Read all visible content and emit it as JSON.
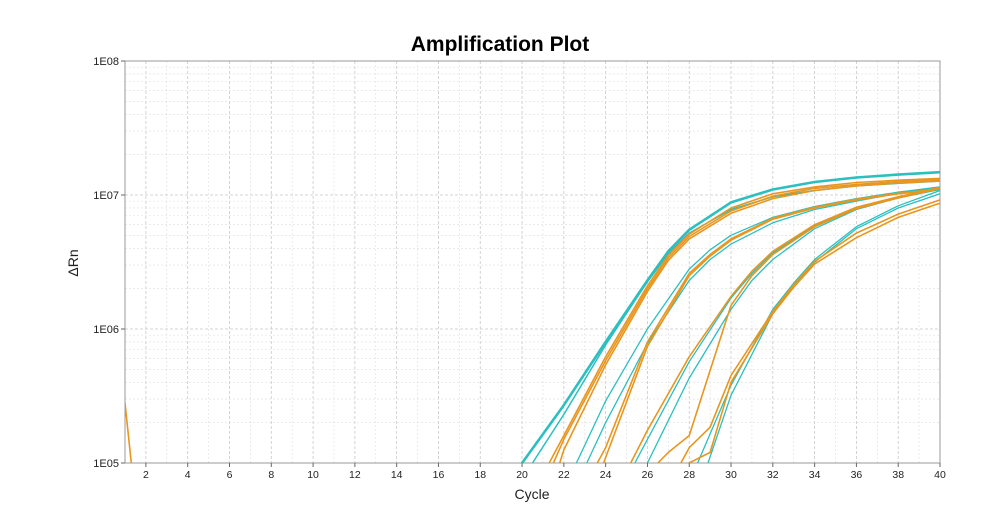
{
  "chart_data": {
    "type": "line",
    "title": "Amplification Plot",
    "xlabel": "Cycle",
    "ylabel": "ΔRn",
    "xlim": [
      1,
      40
    ],
    "ylim": [
      100000,
      100000000
    ],
    "yscale": "log",
    "grid": true,
    "legend": "none",
    "x_ticks": [
      2,
      4,
      6,
      8,
      10,
      12,
      14,
      16,
      18,
      20,
      22,
      24,
      26,
      28,
      30,
      32,
      34,
      36,
      38,
      40
    ],
    "x_tick_labels": [
      "2",
      "4",
      "6",
      "8",
      "10",
      "12",
      "14",
      "16",
      "18",
      "20",
      "22",
      "24",
      "26",
      "28",
      "30",
      "32",
      "34",
      "36",
      "38",
      "40"
    ],
    "y_ticks": [
      100000,
      1000000,
      10000000,
      100000000
    ],
    "y_tick_labels": [
      "1E05",
      "1E06",
      "1E07",
      "1E08"
    ],
    "colors": {
      "teal": "#2bbfc0",
      "orange": "#e8961e"
    },
    "series": [
      {
        "color": "#2bbfc0",
        "width": 2.6,
        "x": [
          20,
          22,
          24,
          26,
          27,
          28,
          30,
          32,
          34,
          36,
          38,
          40
        ],
        "y": [
          100000,
          270000,
          800000,
          2300000,
          3800000,
          5500000,
          8800000,
          11000000,
          12500000,
          13500000,
          14200000,
          14800000
        ]
      },
      {
        "color": "#2bbfc0",
        "width": 1.5,
        "x": [
          20.5,
          22,
          24,
          26,
          27,
          28,
          30,
          32,
          34,
          36,
          38,
          40
        ],
        "y": [
          100000,
          230000,
          760000,
          2250000,
          3650000,
          5200000,
          7800000,
          9700000,
          10800000,
          11700000,
          12200000,
          12700000
        ]
      },
      {
        "color": "#e8961e",
        "width": 1.6,
        "x": [
          21.3,
          22,
          24,
          26,
          27,
          28,
          30,
          32,
          34,
          36,
          38,
          40
        ],
        "y": [
          100000,
          160000,
          620000,
          2100000,
          3550000,
          5100000,
          8000000,
          10200000,
          11500000,
          12400000,
          12900000,
          13300000
        ]
      },
      {
        "color": "#e8961e",
        "width": 1.6,
        "x": [
          21.5,
          22,
          24,
          26,
          27,
          28,
          30,
          32,
          34,
          36,
          38,
          40
        ],
        "y": [
          100000,
          150000,
          580000,
          2000000,
          3400000,
          4900000,
          7600000,
          9800000,
          11200000,
          12000000,
          12600000,
          13000000
        ]
      },
      {
        "color": "#e8961e",
        "width": 1.6,
        "x": [
          21.8,
          22,
          24,
          26,
          27,
          28,
          30,
          32,
          34,
          36,
          38,
          40
        ],
        "y": [
          100000,
          125000,
          540000,
          1900000,
          3250000,
          4700000,
          7300000,
          9400000,
          10800000,
          11700000,
          12300000,
          12700000
        ]
      },
      {
        "color": "#2bbfc0",
        "width": 1.3,
        "x": [
          22.6,
          24,
          26,
          28,
          29,
          30,
          32,
          34,
          36,
          38,
          40
        ],
        "y": [
          100000,
          290000,
          1000000,
          2800000,
          3900000,
          5000000,
          6800000,
          8200000,
          9400000,
          10500000,
          11500000
        ]
      },
      {
        "color": "#2bbfc0",
        "width": 1.3,
        "x": [
          23.1,
          24,
          26,
          28,
          29,
          30,
          32,
          34,
          36,
          38,
          40
        ],
        "y": [
          100000,
          200000,
          780000,
          2300000,
          3300000,
          4300000,
          6200000,
          7800000,
          9000000,
          10300000,
          11500000
        ]
      },
      {
        "color": "#e8961e",
        "width": 1.6,
        "x": [
          23.6,
          24,
          26,
          28,
          29,
          30,
          32,
          34,
          36,
          38,
          40
        ],
        "y": [
          100000,
          130000,
          800000,
          2600000,
          3600000,
          4700000,
          6700000,
          8100000,
          9300000,
          10300000,
          11100000
        ]
      },
      {
        "color": "#e8961e",
        "width": 1.6,
        "x": [
          23.9,
          24,
          26,
          28,
          29,
          30,
          32,
          34,
          36,
          38,
          40
        ],
        "y": [
          100000,
          110000,
          740000,
          2500000,
          3500000,
          4600000,
          6600000,
          8000000,
          9200000,
          10200000,
          11000000
        ]
      },
      {
        "color": "#2bbfc0",
        "width": 1.3,
        "x": [
          25.4,
          26,
          28,
          30,
          31,
          32,
          34,
          36,
          38,
          40
        ],
        "y": [
          100000,
          150000,
          570000,
          1700000,
          2600000,
          3700000,
          5900000,
          8000000,
          9600000,
          11300000
        ]
      },
      {
        "color": "#2bbfc0",
        "width": 1.3,
        "x": [
          26.0,
          28,
          30,
          31,
          32,
          34,
          36,
          38,
          40
        ],
        "y": [
          100000,
          430000,
          1400000,
          2300000,
          3300000,
          5600000,
          7800000,
          9500000,
          11000000
        ]
      },
      {
        "color": "#e8961e",
        "width": 1.6,
        "x": [
          25.2,
          26,
          28,
          30,
          31,
          32,
          34,
          36,
          38,
          40
        ],
        "y": [
          100000,
          175000,
          620000,
          1750000,
          2700000,
          3800000,
          6000000,
          8100000,
          9700000,
          11400000
        ]
      },
      {
        "color": "#e8961e",
        "width": 1.6,
        "x": [
          26.5,
          27,
          28,
          30,
          31,
          32,
          34,
          36,
          38,
          40
        ],
        "y": [
          100000,
          120000,
          160000,
          1500000,
          2500000,
          3600000,
          5800000,
          7900000,
          9500000,
          11200000
        ]
      },
      {
        "color": "#2bbfc0",
        "width": 1.3,
        "x": [
          28.4,
          30,
          32,
          33,
          34,
          36,
          38,
          40
        ],
        "y": [
          100000,
          380000,
          1400000,
          2200000,
          3300000,
          5800000,
          8300000,
          10800000
        ]
      },
      {
        "color": "#2bbfc0",
        "width": 1.3,
        "x": [
          28.9,
          30,
          32,
          33,
          34,
          36,
          38,
          40
        ],
        "y": [
          100000,
          320000,
          1300000,
          2100000,
          3150000,
          5600000,
          8000000,
          10200000
        ]
      },
      {
        "color": "#e8961e",
        "width": 1.6,
        "x": [
          27.6,
          28,
          29,
          30,
          32,
          33,
          34,
          36,
          38,
          40
        ],
        "y": [
          100000,
          130000,
          185000,
          450000,
          1350000,
          2150000,
          3200000,
          5200000,
          7200000,
          9200000
        ]
      },
      {
        "color": "#e8961e",
        "width": 1.6,
        "x": [
          28.0,
          29,
          30,
          32,
          33,
          34,
          36,
          38,
          40
        ],
        "y": [
          100000,
          120000,
          400000,
          1300000,
          2050000,
          3050000,
          4800000,
          6800000,
          8700000
        ]
      },
      {
        "color": "#e8961e",
        "width": 1.6,
        "x": [
          1,
          1.3
        ],
        "y": [
          280000,
          100000
        ]
      }
    ]
  }
}
